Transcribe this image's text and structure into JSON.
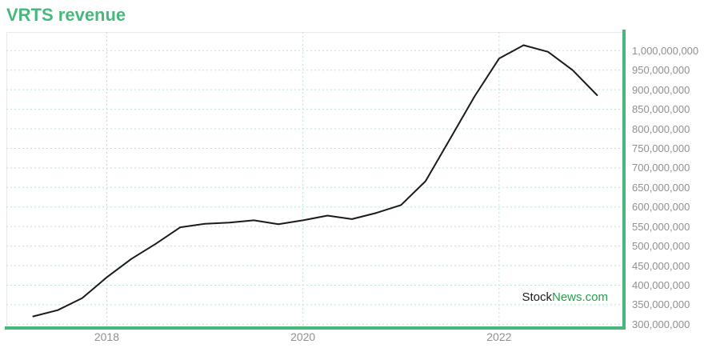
{
  "title": {
    "text": "VRTS revenue",
    "color": "#45b97c"
  },
  "watermark": {
    "part1": "Stock",
    "part2": "News.com",
    "part1_color": "#1b1b1b",
    "part2_color": "#21a148"
  },
  "colors": {
    "accent_green": "#45b97c",
    "gridline": "#b9e5d1",
    "axis_label": "#909090",
    "line": "#1b1b1b",
    "plot_border": "#e9e9e9",
    "background": "#ffffff"
  },
  "chart_data": {
    "type": "line",
    "title": "VRTS revenue",
    "xlabel": "",
    "ylabel": "",
    "grid": true,
    "legend": false,
    "x": [
      "Q2 2017",
      "Q3 2017",
      "Q4 2017",
      "Q1 2018",
      "Q2 2018",
      "Q3 2018",
      "Q4 2018",
      "Q1 2019",
      "Q2 2019",
      "Q3 2019",
      "Q4 2019",
      "Q1 2020",
      "Q2 2020",
      "Q3 2020",
      "Q4 2020",
      "Q1 2021",
      "Q2 2021",
      "Q3 2021",
      "Q4 2021",
      "Q1 2022",
      "Q2 2022",
      "Q3 2022",
      "Q4 2022",
      "Q1 2023"
    ],
    "series": [
      {
        "name": "VRTS revenue",
        "color": "#1b1b1b",
        "values": [
          320000000,
          336000000,
          367000000,
          420000000,
          467000000,
          506000000,
          548000000,
          557000000,
          560000000,
          566000000,
          556000000,
          566000000,
          578000000,
          569000000,
          585000000,
          605000000,
          666000000,
          774000000,
          883000000,
          980000000,
          1014000000,
          997000000,
          950000000,
          886000000
        ]
      }
    ],
    "x_ticks": [
      {
        "label": "2018",
        "index": 3
      },
      {
        "label": "2020",
        "index": 11
      },
      {
        "label": "2022",
        "index": 19
      }
    ],
    "y_ticks": [
      {
        "value": 1000000000,
        "label": "1,000,000,000"
      },
      {
        "value": 950000000,
        "label": "950,000,000"
      },
      {
        "value": 900000000,
        "label": "900,000,000"
      },
      {
        "value": 850000000,
        "label": "850,000,000"
      },
      {
        "value": 800000000,
        "label": "800,000,000"
      },
      {
        "value": 750000000,
        "label": "750,000,000"
      },
      {
        "value": 700000000,
        "label": "700,000,000"
      },
      {
        "value": 650000000,
        "label": "650,000,000"
      },
      {
        "value": 600000000,
        "label": "600,000,000"
      },
      {
        "value": 550000000,
        "label": "550,000,000"
      },
      {
        "value": 500000000,
        "label": "500,000,000"
      },
      {
        "value": 450000000,
        "label": "450,000,000"
      },
      {
        "value": 400000000,
        "label": "400,000,000"
      },
      {
        "value": 350000000,
        "label": "350,000,000"
      },
      {
        "value": 300000000,
        "label": "300,000,000"
      }
    ],
    "ylim": [
      300000000,
      1047000000
    ]
  }
}
